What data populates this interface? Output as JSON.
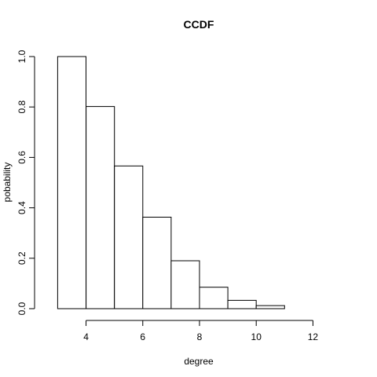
{
  "chart_data": {
    "type": "bar",
    "title": "CCDF",
    "xlabel": "degree",
    "ylabel": "pobability",
    "xlim": [
      2.6,
      13.4
    ],
    "ylim": [
      0,
      1
    ],
    "x_ticks": [
      4,
      6,
      8,
      10,
      12
    ],
    "y_ticks": [
      0.0,
      0.2,
      0.4,
      0.6,
      0.8,
      1.0
    ],
    "y_tick_labels": [
      "0.0",
      "0.2",
      "0.4",
      "0.6",
      "0.8",
      "1.0"
    ],
    "bins": [
      {
        "x0": 3,
        "x1": 4,
        "value": 1.0
      },
      {
        "x0": 4,
        "x1": 5,
        "value": 0.802
      },
      {
        "x0": 5,
        "x1": 6,
        "value": 0.566
      },
      {
        "x0": 6,
        "x1": 7,
        "value": 0.363
      },
      {
        "x0": 7,
        "x1": 8,
        "value": 0.19
      },
      {
        "x0": 8,
        "x1": 9,
        "value": 0.085
      },
      {
        "x0": 9,
        "x1": 10,
        "value": 0.033
      },
      {
        "x0": 10,
        "x1": 11,
        "value": 0.012
      },
      {
        "x0": 11,
        "x1": 12,
        "value": 0.0
      },
      {
        "x0": 12,
        "x1": 13,
        "value": 0.0
      }
    ],
    "grid": false,
    "legend": "none"
  }
}
